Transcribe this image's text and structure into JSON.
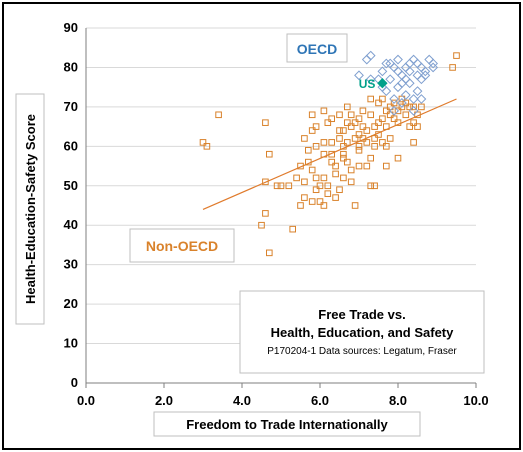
{
  "chart_data": {
    "type": "scatter",
    "title_lines": [
      "Free Trade vs.",
      "Health, Education, and Safety"
    ],
    "source_note": "P170204-1 Data sources: Legatum, Fraser",
    "xlabel": "Freedom to Trade Internationally",
    "ylabel": "Health-Education-Safety Score",
    "xlim": [
      0,
      10
    ],
    "ylim": [
      0,
      90
    ],
    "x_ticks": [
      "0.0",
      "2.0",
      "4.0",
      "6.0",
      "8.0",
      "10.0"
    ],
    "y_ticks": [
      "0",
      "10",
      "20",
      "30",
      "40",
      "50",
      "60",
      "70",
      "80",
      "90"
    ],
    "grid": "horizontal",
    "group_labels": {
      "oecd": "OECD",
      "non_oecd": "Non-OECD"
    },
    "highlight": {
      "label": "US",
      "x": 7.6,
      "y": 76
    },
    "trendline": {
      "x": [
        3.0,
        9.5
      ],
      "y": [
        44,
        72
      ]
    },
    "colors": {
      "oecd": "#7f9fcf",
      "oecd_label": "#2e75b6",
      "non_oecd": "#d9822b",
      "us": "#00a08a",
      "trend": "#e07b2c"
    },
    "series": [
      {
        "name": "OECD",
        "marker": "diamond",
        "points": [
          [
            7.2,
            82
          ],
          [
            7.3,
            83
          ],
          [
            7.6,
            79
          ],
          [
            7.5,
            77
          ],
          [
            7.0,
            78
          ],
          [
            7.3,
            77
          ],
          [
            7.7,
            81
          ],
          [
            7.8,
            81
          ],
          [
            7.9,
            80
          ],
          [
            8.0,
            79
          ],
          [
            8.1,
            78
          ],
          [
            8.2,
            80
          ],
          [
            8.3,
            81
          ],
          [
            8.4,
            82
          ],
          [
            8.5,
            81
          ],
          [
            8.6,
            80
          ],
          [
            8.7,
            79
          ],
          [
            8.8,
            82
          ],
          [
            8.9,
            80
          ],
          [
            8.2,
            77
          ],
          [
            8.0,
            75
          ],
          [
            8.3,
            76
          ],
          [
            8.5,
            74
          ],
          [
            8.4,
            72
          ],
          [
            7.7,
            74
          ],
          [
            7.9,
            72
          ],
          [
            8.1,
            71
          ],
          [
            8.2,
            73
          ],
          [
            8.6,
            77
          ],
          [
            8.7,
            78
          ],
          [
            8.0,
            82
          ],
          [
            7.8,
            77
          ],
          [
            8.3,
            79
          ],
          [
            8.5,
            78
          ],
          [
            8.9,
            81
          ],
          [
            7.6,
            75
          ],
          [
            8.4,
            69
          ],
          [
            7.9,
            69
          ],
          [
            8.1,
            76
          ],
          [
            8.6,
            72
          ]
        ]
      },
      {
        "name": "Non-OECD",
        "marker": "square",
        "points": [
          [
            3.0,
            61
          ],
          [
            3.1,
            60
          ],
          [
            3.4,
            68
          ],
          [
            4.5,
            40
          ],
          [
            4.6,
            43
          ],
          [
            4.6,
            66
          ],
          [
            4.6,
            51
          ],
          [
            4.7,
            58
          ],
          [
            4.7,
            33
          ],
          [
            4.9,
            50
          ],
          [
            5.0,
            50
          ],
          [
            5.2,
            50
          ],
          [
            5.3,
            39
          ],
          [
            5.4,
            52
          ],
          [
            5.5,
            55
          ],
          [
            5.5,
            45
          ],
          [
            5.6,
            51
          ],
          [
            5.6,
            47
          ],
          [
            5.7,
            59
          ],
          [
            5.7,
            56
          ],
          [
            5.8,
            46
          ],
          [
            5.8,
            54
          ],
          [
            5.8,
            64
          ],
          [
            5.8,
            68
          ],
          [
            5.9,
            60
          ],
          [
            5.9,
            65
          ],
          [
            5.9,
            52
          ],
          [
            5.9,
            49
          ],
          [
            6.0,
            50
          ],
          [
            6.0,
            46
          ],
          [
            6.1,
            45
          ],
          [
            6.1,
            58
          ],
          [
            6.1,
            52
          ],
          [
            6.1,
            61
          ],
          [
            6.1,
            69
          ],
          [
            6.2,
            66
          ],
          [
            6.2,
            50
          ],
          [
            6.2,
            48
          ],
          [
            6.3,
            56
          ],
          [
            6.3,
            58
          ],
          [
            6.3,
            61
          ],
          [
            6.3,
            67
          ],
          [
            6.4,
            55
          ],
          [
            6.4,
            53
          ],
          [
            6.5,
            49
          ],
          [
            6.5,
            62
          ],
          [
            6.5,
            64
          ],
          [
            6.5,
            68
          ],
          [
            6.6,
            60
          ],
          [
            6.6,
            58
          ],
          [
            6.6,
            64
          ],
          [
            6.6,
            57
          ],
          [
            6.6,
            52
          ],
          [
            6.7,
            66
          ],
          [
            6.7,
            70
          ],
          [
            6.7,
            61
          ],
          [
            6.7,
            56
          ],
          [
            6.8,
            65
          ],
          [
            6.8,
            68
          ],
          [
            6.8,
            54
          ],
          [
            6.8,
            51
          ],
          [
            6.9,
            45
          ],
          [
            6.9,
            62
          ],
          [
            6.9,
            66
          ],
          [
            7.0,
            67
          ],
          [
            7.0,
            63
          ],
          [
            7.0,
            60
          ],
          [
            7.0,
            59
          ],
          [
            7.0,
            55
          ],
          [
            7.1,
            69
          ],
          [
            7.1,
            65
          ],
          [
            7.1,
            62
          ],
          [
            7.2,
            64
          ],
          [
            7.2,
            61
          ],
          [
            7.2,
            55
          ],
          [
            7.3,
            50
          ],
          [
            7.3,
            57
          ],
          [
            7.3,
            68
          ],
          [
            7.4,
            65
          ],
          [
            7.4,
            62
          ],
          [
            7.4,
            60
          ],
          [
            7.4,
            50
          ],
          [
            7.5,
            71
          ],
          [
            7.5,
            66
          ],
          [
            7.5,
            63
          ],
          [
            7.6,
            61
          ],
          [
            7.6,
            67
          ],
          [
            7.6,
            72
          ],
          [
            7.7,
            60
          ],
          [
            7.7,
            69
          ],
          [
            7.7,
            65
          ],
          [
            7.8,
            70
          ],
          [
            7.8,
            68
          ],
          [
            7.8,
            62
          ],
          [
            7.9,
            67
          ],
          [
            7.9,
            71
          ],
          [
            8.0,
            57
          ],
          [
            8.0,
            69
          ],
          [
            8.0,
            66
          ],
          [
            8.1,
            72
          ],
          [
            8.1,
            70
          ],
          [
            8.2,
            68
          ],
          [
            8.2,
            71
          ],
          [
            8.3,
            65
          ],
          [
            8.3,
            70
          ],
          [
            8.4,
            66
          ],
          [
            8.4,
            61
          ],
          [
            8.4,
            70
          ],
          [
            8.5,
            65
          ],
          [
            8.5,
            68
          ],
          [
            8.6,
            70
          ],
          [
            9.4,
            80
          ],
          [
            9.5,
            83
          ],
          [
            7.7,
            55
          ],
          [
            6.4,
            47
          ],
          [
            5.6,
            62
          ],
          [
            7.3,
            72
          ]
        ]
      }
    ]
  }
}
